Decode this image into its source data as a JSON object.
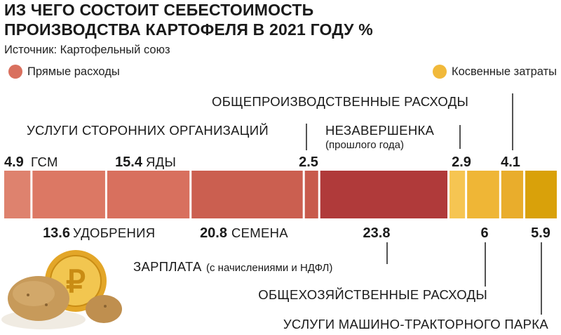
{
  "title_lines": [
    "ИЗ ЧЕГО СОСТОИТ СЕБЕСТОИМОСТЬ",
    "ПРОИЗВОДСТВА КАРТОФЕЛЯ В 2021 ГОДУ %"
  ],
  "source": "Источник: Картофельный союз",
  "legend": {
    "direct": {
      "label": "Прямые расходы",
      "color": "#d9705e"
    },
    "indirect": {
      "label": "Косвенные затраты",
      "color": "#f1b93a"
    }
  },
  "chart_data": {
    "type": "bar",
    "stacked": true,
    "orientation": "horizontal",
    "title": "ИЗ ЧЕГО СОСТОИТ СЕБЕСТОИМОСТЬ ПРОИЗВОДСТВА КАРТОФЕЛЯ В 2021 ГОДУ %",
    "unit": "%",
    "segments": [
      {
        "label": "ГСМ",
        "value": 4.9,
        "value_text": "4.9",
        "group": "direct",
        "color": "#de826e"
      },
      {
        "label": "УДОБРЕНИЯ",
        "value": 13.6,
        "value_text": "13.6",
        "group": "direct",
        "color": "#dc7864"
      },
      {
        "label": "ЯДЫ",
        "value": 15.4,
        "value_text": "15.4",
        "group": "direct",
        "color": "#d8705e"
      },
      {
        "label": "СЕМЕНА",
        "value": 20.8,
        "value_text": "20.8",
        "group": "direct",
        "color": "#cb5f50"
      },
      {
        "label": "УСЛУГИ СТОРОННИХ ОРГАНИЗАЦИЙ",
        "value": 2.5,
        "value_text": "2.5",
        "group": "direct",
        "color": "#c85a4c"
      },
      {
        "label": "ЗАРПЛАТА",
        "sublabel": "(с начислениями и НДФЛ)",
        "value": 23.8,
        "value_text": "23.8",
        "group": "direct",
        "color": "#b03a3a"
      },
      {
        "label": "НЕЗАВЕРШЕНКА",
        "sublabel": "(прошлого года)",
        "value": 2.9,
        "value_text": "2.9",
        "group": "indirect",
        "color": "#f6c552"
      },
      {
        "label": "ОБЩЕХОЗЯЙСТВЕННЫЕ РАСХОДЫ",
        "value": 6,
        "value_text": "6",
        "group": "indirect",
        "color": "#efb636"
      },
      {
        "label": "ОБЩЕПРОИЗВОДСТВЕННЫЕ РАСХОДЫ",
        "value": 4.1,
        "value_text": "4.1",
        "group": "indirect",
        "color": "#e9ad2c"
      },
      {
        "label": "УСЛУГИ МАШИНО-ТРАКТОРНОГО ПАРКА",
        "value": 5.9,
        "value_text": "5.9",
        "group": "indirect",
        "color": "#d9a10a"
      }
    ]
  }
}
